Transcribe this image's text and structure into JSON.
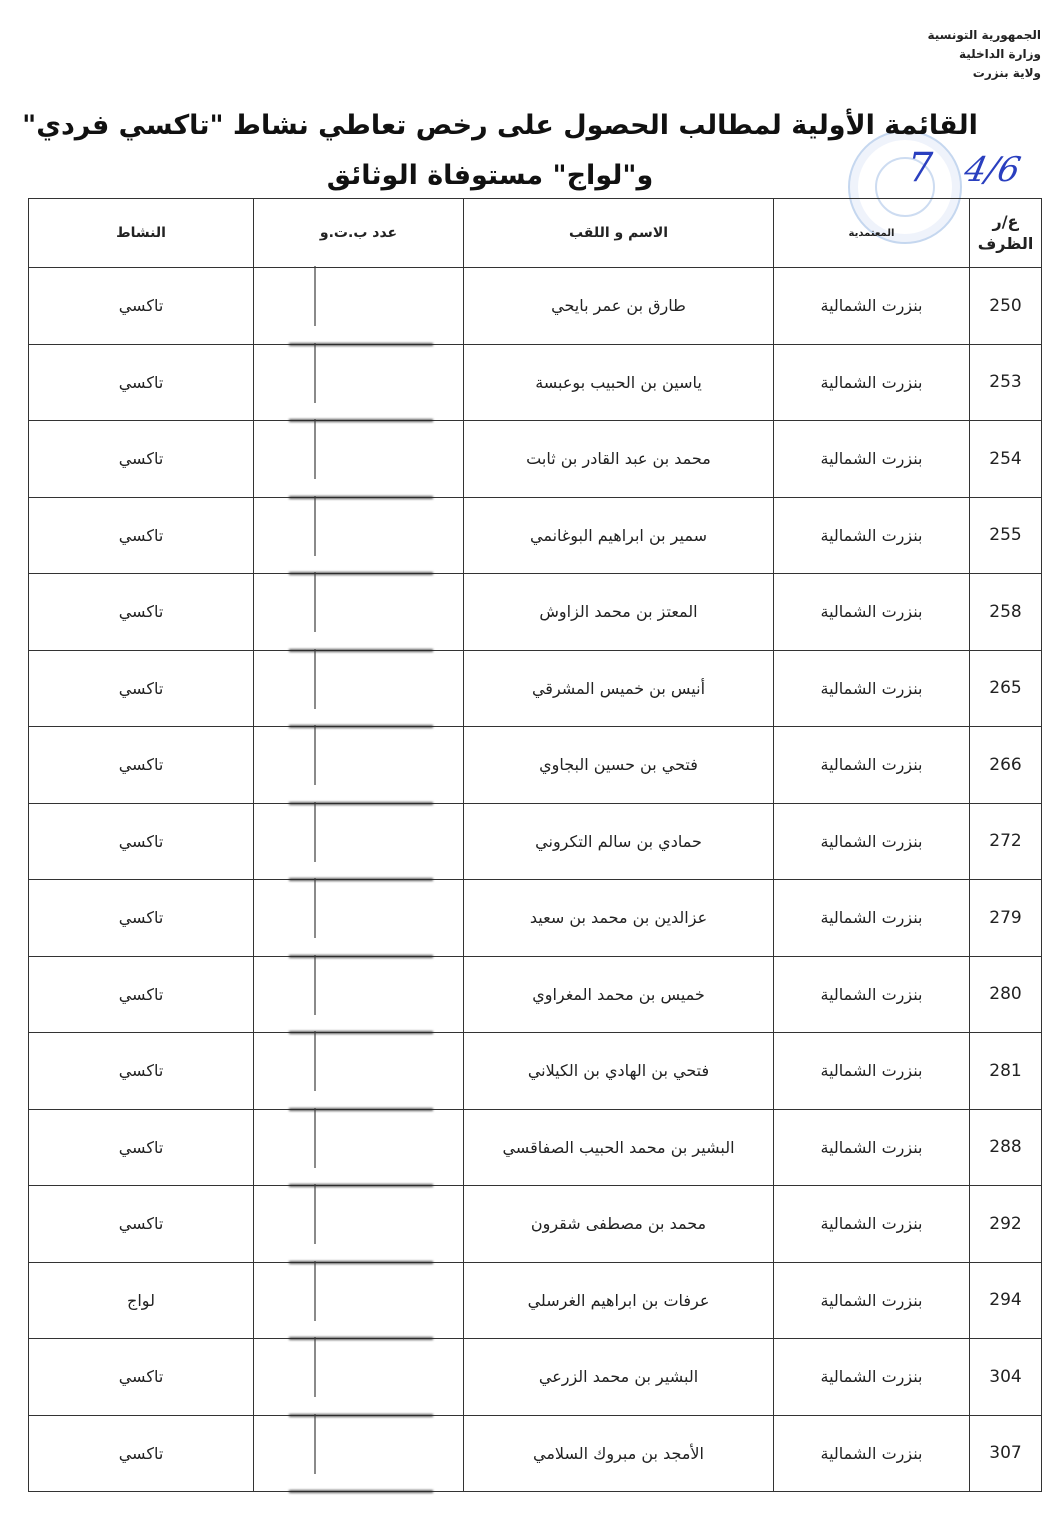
{
  "header": {
    "republic": "الجمهورية التونسية",
    "ministry": "وزارة الداخلية",
    "governorate": "ولاية بنزرت"
  },
  "title": {
    "line1": "القائمة الأولية لمطالب الحصول على رخص تعاطي نشاط \"تاكسي فردي\"",
    "line2": "و\"لواج\" مستوفاة الوثائق"
  },
  "annotation": {
    "mark": "7",
    "page": "4/6"
  },
  "table": {
    "columns": {
      "number": "ع/ر الظرف",
      "delegation": "المعتمدية",
      "name": "الاسم و اللقب",
      "id": "عدد ب.ت.و",
      "activity": "النشاط"
    },
    "rows": [
      {
        "number": "250",
        "delegation": "بنزرت الشمالية",
        "name": "طارق بن عمر بايحي",
        "activity": "تاكسي"
      },
      {
        "number": "253",
        "delegation": "بنزرت الشمالية",
        "name": "ياسين بن الحبيب بوعبسة",
        "activity": "تاكسي"
      },
      {
        "number": "254",
        "delegation": "بنزرت الشمالية",
        "name": "محمد بن عبد القادر بن ثابت",
        "activity": "تاكسي"
      },
      {
        "number": "255",
        "delegation": "بنزرت الشمالية",
        "name": "سمير بن ابراهيم البوغانمي",
        "activity": "تاكسي"
      },
      {
        "number": "258",
        "delegation": "بنزرت الشمالية",
        "name": "المعتز بن محمد الزاوش",
        "activity": "تاكسي"
      },
      {
        "number": "265",
        "delegation": "بنزرت الشمالية",
        "name": "أنيس بن خميس المشرقي",
        "activity": "تاكسي"
      },
      {
        "number": "266",
        "delegation": "بنزرت الشمالية",
        "name": "فتحي بن حسين البجاوي",
        "activity": "تاكسي"
      },
      {
        "number": "272",
        "delegation": "بنزرت الشمالية",
        "name": "حمادي بن سالم التكروني",
        "activity": "تاكسي"
      },
      {
        "number": "279",
        "delegation": "بنزرت الشمالية",
        "name": "عزالدين بن محمد بن سعيد",
        "activity": "تاكسي"
      },
      {
        "number": "280",
        "delegation": "بنزرت الشمالية",
        "name": "خميس بن محمد المغراوي",
        "activity": "تاكسي"
      },
      {
        "number": "281",
        "delegation": "بنزرت الشمالية",
        "name": "فتحي بن الهادي بن الكيلاني",
        "activity": "تاكسي"
      },
      {
        "number": "288",
        "delegation": "بنزرت الشمالية",
        "name": "البشير بن محمد الحبيب الصفاقسي",
        "activity": "تاكسي"
      },
      {
        "number": "292",
        "delegation": "بنزرت الشمالية",
        "name": "محمد بن مصطفى شقرون",
        "activity": "تاكسي"
      },
      {
        "number": "294",
        "delegation": "بنزرت الشمالية",
        "name": "عرفات بن ابراهيم الغرسلي",
        "activity": "لواج"
      },
      {
        "number": "304",
        "delegation": "بنزرت الشمالية",
        "name": "البشير بن محمد الزرعي",
        "activity": "تاكسي"
      },
      {
        "number": "307",
        "delegation": "بنزرت الشمالية",
        "name": "الأمجد بن مبروك السلامي",
        "activity": "تاكسي"
      }
    ]
  }
}
